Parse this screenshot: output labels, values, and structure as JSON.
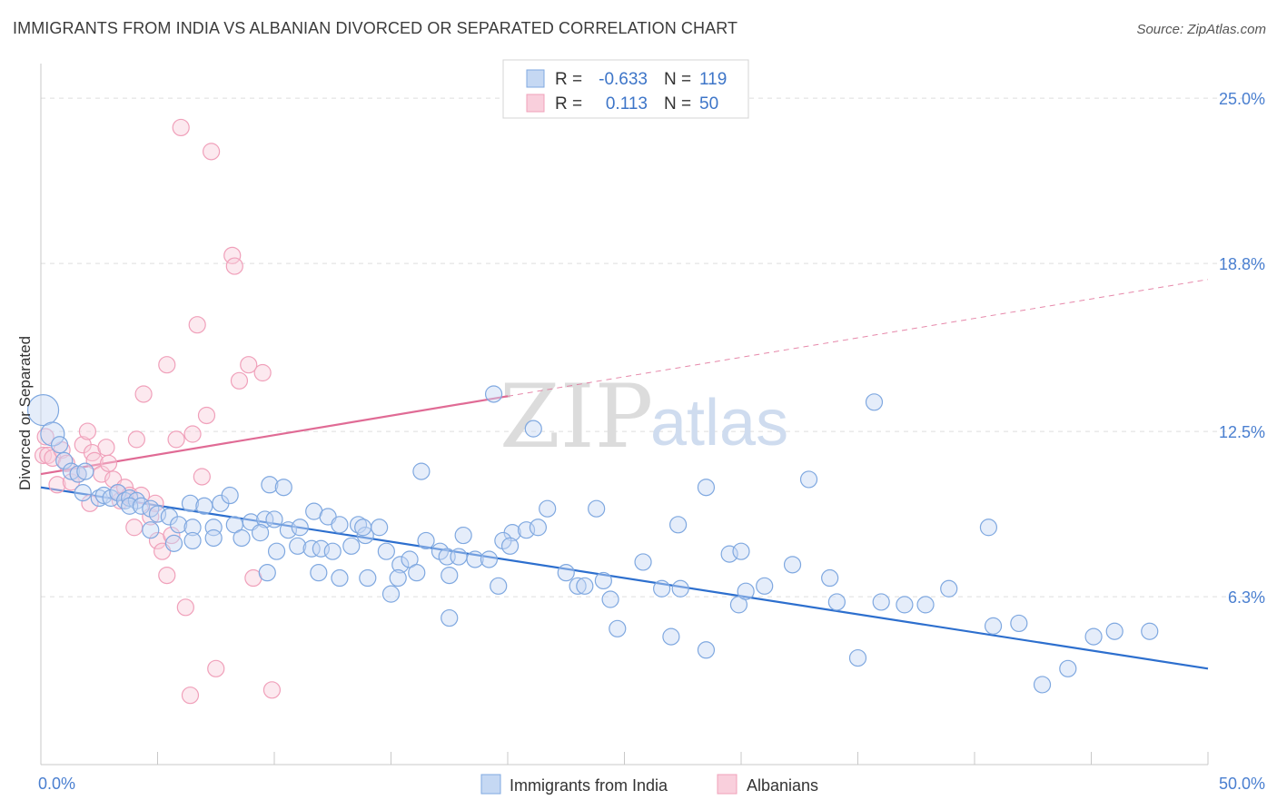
{
  "title": "IMMIGRANTS FROM INDIA VS ALBANIAN DIVORCED OR SEPARATED CORRELATION CHART",
  "source": "Source: ZipAtlas.com",
  "watermark": {
    "zip": "ZIP",
    "atlas": "atlas"
  },
  "legend_box": {
    "rows": [
      {
        "r_label": "R =",
        "r_value": "-0.633",
        "n_label": "N =",
        "n_value": "119",
        "color": "#7fa8e0"
      },
      {
        "r_label": "R =",
        "r_value": "0.113",
        "n_label": "N =",
        "n_value": "50",
        "color": "#f0a0ba"
      }
    ]
  },
  "bottom_legend": {
    "india": "Immigrants from India",
    "albanians": "Albanians"
  },
  "chart_data": {
    "type": "scatter",
    "xlabel": "",
    "ylabel": "Divorced or Separated",
    "xlim": [
      0,
      50
    ],
    "ylim": [
      0,
      26.3
    ],
    "x_tick_labels": {
      "left": "0.0%",
      "right": "50.0%"
    },
    "y_ticks": [
      {
        "value": 25.0,
        "label": "25.0%"
      },
      {
        "value": 18.8,
        "label": "18.8%"
      },
      {
        "value": 12.5,
        "label": "12.5%"
      },
      {
        "value": 6.3,
        "label": "6.3%"
      }
    ],
    "grid": true,
    "legend_position": "top-center",
    "series": [
      {
        "name": "Immigrants from India",
        "color": "#7fa8e0",
        "line_color": "#2d6fce",
        "trend": {
          "x0": 0,
          "y0": 10.4,
          "x1": 50,
          "y1": 3.6
        },
        "points": [
          [
            0.1,
            13.3
          ],
          [
            0.5,
            12.4
          ],
          [
            0.8,
            12.0
          ],
          [
            1.0,
            11.4
          ],
          [
            1.3,
            11.0
          ],
          [
            1.6,
            10.9
          ],
          [
            1.9,
            11.0
          ],
          [
            1.8,
            10.2
          ],
          [
            2.5,
            10.0
          ],
          [
            2.7,
            10.1
          ],
          [
            3.0,
            10.0
          ],
          [
            3.3,
            10.2
          ],
          [
            3.6,
            9.9
          ],
          [
            3.8,
            10.0
          ],
          [
            4.1,
            9.9
          ],
          [
            3.8,
            9.7
          ],
          [
            4.3,
            9.7
          ],
          [
            4.7,
            9.6
          ],
          [
            5.0,
            9.4
          ],
          [
            5.5,
            9.3
          ],
          [
            4.7,
            8.8
          ],
          [
            5.9,
            9.0
          ],
          [
            6.5,
            8.9
          ],
          [
            6.4,
            9.8
          ],
          [
            7.0,
            9.7
          ],
          [
            7.7,
            9.8
          ],
          [
            8.1,
            10.1
          ],
          [
            7.4,
            8.9
          ],
          [
            8.3,
            9.0
          ],
          [
            9.0,
            9.1
          ],
          [
            9.6,
            9.2
          ],
          [
            10.0,
            9.2
          ],
          [
            5.7,
            8.3
          ],
          [
            6.5,
            8.4
          ],
          [
            7.4,
            8.5
          ],
          [
            8.6,
            8.5
          ],
          [
            9.4,
            8.7
          ],
          [
            10.6,
            8.8
          ],
          [
            11.1,
            8.9
          ],
          [
            11.7,
            9.5
          ],
          [
            12.3,
            9.3
          ],
          [
            12.8,
            9.0
          ],
          [
            13.6,
            9.0
          ],
          [
            9.8,
            10.5
          ],
          [
            10.4,
            10.4
          ],
          [
            10.1,
            8.0
          ],
          [
            11.0,
            8.2
          ],
          [
            11.6,
            8.1
          ],
          [
            12.0,
            8.1
          ],
          [
            12.5,
            8.0
          ],
          [
            13.3,
            8.2
          ],
          [
            13.9,
            8.6
          ],
          [
            14.5,
            8.9
          ],
          [
            13.8,
            8.9
          ],
          [
            16.3,
            11.0
          ],
          [
            14.8,
            8.0
          ],
          [
            15.4,
            7.5
          ],
          [
            15.8,
            7.7
          ],
          [
            16.5,
            8.4
          ],
          [
            17.1,
            8.0
          ],
          [
            16.1,
            7.2
          ],
          [
            15.3,
            7.0
          ],
          [
            14.0,
            7.0
          ],
          [
            12.8,
            7.0
          ],
          [
            11.9,
            7.2
          ],
          [
            9.7,
            7.2
          ],
          [
            15.0,
            6.4
          ],
          [
            17.4,
            7.8
          ],
          [
            17.5,
            7.1
          ],
          [
            17.9,
            7.8
          ],
          [
            18.1,
            8.6
          ],
          [
            18.6,
            7.7
          ],
          [
            19.2,
            7.7
          ],
          [
            19.6,
            6.7
          ],
          [
            20.2,
            8.7
          ],
          [
            20.8,
            8.8
          ],
          [
            19.8,
            8.4
          ],
          [
            21.3,
            8.9
          ],
          [
            21.7,
            9.6
          ],
          [
            21.1,
            12.6
          ],
          [
            17.5,
            5.5
          ],
          [
            22.5,
            7.2
          ],
          [
            23.0,
            6.7
          ],
          [
            23.3,
            6.7
          ],
          [
            24.1,
            6.9
          ],
          [
            24.4,
            6.2
          ],
          [
            24.7,
            5.1
          ],
          [
            23.8,
            9.6
          ],
          [
            25.8,
            7.6
          ],
          [
            26.6,
            6.6
          ],
          [
            27.0,
            4.8
          ],
          [
            27.3,
            9.0
          ],
          [
            27.4,
            6.6
          ],
          [
            28.5,
            10.4
          ],
          [
            28.5,
            4.3
          ],
          [
            29.5,
            7.9
          ],
          [
            29.9,
            6.0
          ],
          [
            30.0,
            8.0
          ],
          [
            30.2,
            6.5
          ],
          [
            31.0,
            6.7
          ],
          [
            32.2,
            7.5
          ],
          [
            32.9,
            10.7
          ],
          [
            33.8,
            7.0
          ],
          [
            34.1,
            6.1
          ],
          [
            35.0,
            4.0
          ],
          [
            35.7,
            13.6
          ],
          [
            36.0,
            6.1
          ],
          [
            37.0,
            6.0
          ],
          [
            37.9,
            6.0
          ],
          [
            38.9,
            6.6
          ],
          [
            40.6,
            8.9
          ],
          [
            40.8,
            5.2
          ],
          [
            41.9,
            5.3
          ],
          [
            42.9,
            3.0
          ],
          [
            44.0,
            3.6
          ],
          [
            45.1,
            4.8
          ],
          [
            46.0,
            5.0
          ],
          [
            47.5,
            5.0
          ],
          [
            20.1,
            8.2
          ],
          [
            19.4,
            13.9
          ]
        ]
      },
      {
        "name": "Albanians",
        "color": "#f0a0ba",
        "line_color": "#e06b95",
        "trend": {
          "x0": 0,
          "y0": 10.9,
          "x1": 50,
          "y1": 18.2
        },
        "trend_solid_until": 20,
        "points": [
          [
            0.1,
            11.6
          ],
          [
            0.2,
            12.3
          ],
          [
            0.3,
            11.6
          ],
          [
            0.5,
            11.5
          ],
          [
            0.7,
            10.5
          ],
          [
            0.9,
            11.8
          ],
          [
            1.1,
            11.3
          ],
          [
            1.3,
            10.6
          ],
          [
            1.6,
            10.9
          ],
          [
            1.8,
            12.0
          ],
          [
            2.0,
            12.5
          ],
          [
            2.1,
            9.8
          ],
          [
            2.2,
            11.7
          ],
          [
            2.3,
            11.4
          ],
          [
            2.6,
            10.9
          ],
          [
            2.8,
            11.9
          ],
          [
            2.9,
            11.3
          ],
          [
            3.1,
            10.7
          ],
          [
            3.3,
            10.2
          ],
          [
            3.4,
            9.9
          ],
          [
            3.6,
            10.4
          ],
          [
            3.8,
            10.1
          ],
          [
            4.0,
            8.9
          ],
          [
            4.1,
            12.2
          ],
          [
            4.3,
            10.1
          ],
          [
            4.4,
            13.9
          ],
          [
            4.7,
            9.3
          ],
          [
            4.9,
            9.8
          ],
          [
            5.0,
            8.4
          ],
          [
            5.2,
            8.0
          ],
          [
            5.4,
            7.1
          ],
          [
            5.6,
            8.6
          ],
          [
            5.8,
            12.2
          ],
          [
            6.0,
            23.9
          ],
          [
            6.2,
            5.9
          ],
          [
            6.4,
            2.6
          ],
          [
            6.5,
            12.4
          ],
          [
            6.7,
            16.5
          ],
          [
            6.9,
            10.8
          ],
          [
            7.1,
            13.1
          ],
          [
            7.3,
            23.0
          ],
          [
            7.5,
            3.6
          ],
          [
            8.2,
            19.1
          ],
          [
            8.3,
            18.7
          ],
          [
            8.5,
            14.4
          ],
          [
            8.9,
            15.0
          ],
          [
            9.1,
            7.0
          ],
          [
            9.5,
            14.7
          ],
          [
            9.9,
            2.8
          ],
          [
            5.4,
            15.0
          ]
        ]
      }
    ]
  }
}
